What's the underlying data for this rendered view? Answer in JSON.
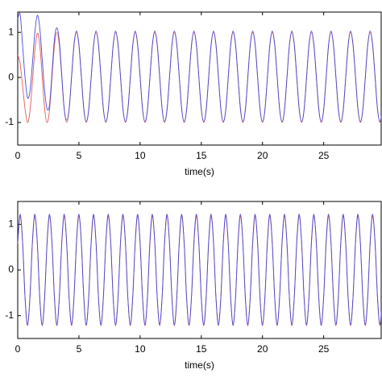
{
  "chart_data": [
    {
      "type": "line",
      "xlabel": "time(s)",
      "xlim": [
        0,
        29.7
      ],
      "ylim": [
        -1.5,
        1.45
      ],
      "xticks": [
        0,
        5,
        10,
        15,
        20,
        25
      ],
      "yticks": [
        -1,
        0,
        1
      ],
      "x": [
        0,
        0.2,
        0.4,
        0.6,
        0.8,
        1,
        1.2,
        1.4,
        1.6,
        1.8,
        2,
        2.2,
        2.4,
        2.6,
        2.8,
        3,
        3.2,
        3.4,
        3.6,
        3.8,
        4,
        4.2,
        4.4,
        4.6,
        4.8,
        5,
        5.2,
        5.4,
        5.6,
        5.8,
        6,
        6.2,
        6.4,
        6.6,
        6.8,
        7,
        7.2,
        7.4,
        7.6,
        7.8,
        8,
        8.2,
        8.4,
        8.6,
        8.8,
        9,
        9.2,
        9.4,
        9.6,
        9.8,
        10,
        10.2,
        10.4,
        10.6,
        10.8,
        11,
        11.2,
        11.4,
        11.6,
        11.8,
        12,
        12.2,
        12.4,
        12.6,
        12.8,
        13,
        13.2,
        13.4,
        13.6,
        13.8,
        14,
        14.2,
        14.4,
        14.6,
        14.8,
        15,
        15.2,
        15.4,
        15.6,
        15.8,
        16,
        16.2,
        16.4,
        16.6,
        16.8,
        17,
        17.2,
        17.4,
        17.6,
        17.8,
        18,
        18.2,
        18.4,
        18.6,
        18.8,
        19,
        19.2,
        19.4,
        19.6,
        19.8,
        20,
        20.2,
        20.4,
        20.6,
        20.8,
        21,
        21.2,
        21.4,
        21.6,
        21.8,
        22,
        22.2,
        22.4,
        22.6,
        22.8,
        23,
        23.2,
        23.4,
        23.6,
        23.8,
        24,
        24.2,
        24.4,
        24.6,
        24.8,
        25,
        25.2,
        25.4,
        25.6,
        25.8,
        26,
        26.2,
        26.4,
        26.6,
        26.8,
        27,
        27.2,
        27.4,
        27.6,
        27.8,
        28,
        28.2,
        28.4,
        28.6,
        28.8,
        29,
        29.2,
        29.4,
        29.6,
        29.8
      ],
      "series": [
        {
          "color": "#e05a5a",
          "values": [
            0.5,
            0.3,
            -0.2,
            -0.7,
            -1,
            -0.75,
            -0.1,
            0.6,
            0.98,
            0.72,
            0.02,
            -0.7,
            -1,
            -0.72,
            0,
            0.71,
            1,
            0.71,
            0,
            -0.71,
            -1,
            -0.71,
            0,
            0.71,
            1,
            0.71,
            0,
            -0.71,
            -1,
            -0.71,
            0,
            0.71,
            1,
            0.71,
            0,
            -0.71,
            -1,
            -0.71,
            0,
            0.71,
            1,
            0.71,
            0,
            -0.71,
            -1,
            -0.71,
            0,
            0.71,
            1,
            0.71,
            0,
            -0.71,
            -1,
            -0.71,
            0,
            0.71,
            1,
            0.71,
            0,
            -0.71,
            -1,
            -0.71,
            0,
            0.71,
            1,
            0.71,
            0,
            -0.71,
            -1,
            -0.71,
            0,
            0.71,
            1,
            0.71,
            0,
            -0.71,
            -1,
            -0.71,
            0,
            0.71,
            1,
            0.71,
            0,
            -0.71,
            -1,
            -0.71,
            0,
            0.71,
            1,
            0.71,
            0,
            -0.71,
            -1,
            -0.71,
            0,
            0.71,
            1,
            0.71,
            0,
            -0.71,
            -1,
            -0.71,
            0,
            0.71,
            1,
            0.71,
            0,
            -0.71,
            -1,
            -0.71,
            0,
            0.71,
            1,
            0.71,
            0,
            -0.71,
            -1,
            -0.71,
            0,
            0.71,
            1,
            0.71,
            0,
            -0.71,
            -1,
            -0.71,
            0,
            0.71,
            1,
            0.71,
            0,
            -0.71,
            -1,
            -0.71,
            0,
            0.71,
            1,
            0.71,
            0,
            -0.71,
            -1,
            -0.71,
            0,
            0.71,
            1,
            0.71,
            0,
            -0.71,
            -1,
            -0.71
          ]
        },
        {
          "color": "#4a4ad0",
          "values": [
            1.3,
            1.4,
            0.7,
            0,
            -0.45,
            -0.3,
            0.3,
            1,
            1.38,
            1.1,
            0.4,
            -0.3,
            -0.7,
            -0.6,
            0.1,
            0.85,
            1.1,
            0.8,
            0.05,
            -0.7,
            -0.95,
            -0.7,
            0.02,
            0.74,
            1.03,
            0.73,
            0.02,
            -0.7,
            -0.98,
            -0.72,
            -0.01,
            0.72,
            1.03,
            0.73,
            0.02,
            -0.7,
            -0.98,
            -0.72,
            -0.01,
            0.72,
            1.03,
            0.73,
            0.02,
            -0.7,
            -0.98,
            -0.72,
            -0.01,
            0.72,
            1.03,
            0.73,
            0.02,
            -0.7,
            -0.98,
            -0.72,
            -0.01,
            0.72,
            1.03,
            0.73,
            0.02,
            -0.7,
            -0.98,
            -0.72,
            -0.01,
            0.72,
            1.03,
            0.73,
            0.02,
            -0.7,
            -0.98,
            -0.72,
            -0.01,
            0.72,
            1.03,
            0.73,
            0.02,
            -0.7,
            -0.98,
            -0.72,
            -0.01,
            0.72,
            1.03,
            0.73,
            0.02,
            -0.7,
            -0.98,
            -0.72,
            -0.01,
            0.72,
            1.03,
            0.73,
            0.02,
            -0.7,
            -0.98,
            -0.72,
            -0.01,
            0.72,
            1.03,
            0.73,
            0.02,
            -0.7,
            -0.98,
            -0.72,
            -0.01,
            0.72,
            1.03,
            0.73,
            0.02,
            -0.7,
            -0.98,
            -0.72,
            -0.01,
            0.72,
            1.03,
            0.73,
            0.02,
            -0.7,
            -0.98,
            -0.72,
            -0.01,
            0.72,
            1.03,
            0.73,
            0.02,
            -0.7,
            -0.98,
            -0.72,
            -0.01,
            0.72,
            1.03,
            0.73,
            0.02,
            -0.7,
            -0.98,
            -0.72,
            -0.01,
            0.72,
            1.03,
            0.73,
            0.02,
            -0.7,
            -0.98,
            -0.72,
            -0.01,
            0.72,
            1.03,
            0.73,
            0.02,
            -0.7,
            -0.98,
            -0.72
          ]
        }
      ]
    },
    {
      "type": "line",
      "xlabel": "time(s)",
      "xlim": [
        0,
        29.7
      ],
      "ylim": [
        -1.5,
        1.5
      ],
      "xticks": [
        0,
        5,
        10,
        15,
        20,
        25
      ],
      "yticks": [
        -1,
        0,
        1
      ],
      "x": [
        0,
        0.2,
        0.4,
        0.6,
        0.8,
        1,
        1.2,
        1.4,
        1.6,
        1.8,
        2,
        2.2,
        2.4,
        2.6,
        2.8,
        3,
        3.2,
        3.4,
        3.6,
        3.8,
        4,
        4.2,
        4.4,
        4.6,
        4.8,
        5,
        5.2,
        5.4,
        5.6,
        5.8,
        6,
        6.2,
        6.4,
        6.6,
        6.8,
        7,
        7.2,
        7.4,
        7.6,
        7.8,
        8,
        8.2,
        8.4,
        8.6,
        8.8,
        9,
        9.2,
        9.4,
        9.6,
        9.8,
        10,
        10.2,
        10.4,
        10.6,
        10.8,
        11,
        11.2,
        11.4,
        11.6,
        11.8,
        12,
        12.2,
        12.4,
        12.6,
        12.8,
        13,
        13.2,
        13.4,
        13.6,
        13.8,
        14,
        14.2,
        14.4,
        14.6,
        14.8,
        15,
        15.2,
        15.4,
        15.6,
        15.8,
        16,
        16.2,
        16.4,
        16.6,
        16.8,
        17,
        17.2,
        17.4,
        17.6,
        17.8,
        18,
        18.2,
        18.4,
        18.6,
        18.8,
        19,
        19.2,
        19.4,
        19.6,
        19.8,
        20,
        20.2,
        20.4,
        20.6,
        20.8,
        21,
        21.2,
        21.4,
        21.6,
        21.8,
        22,
        22.2,
        22.4,
        22.6,
        22.8,
        23,
        23.2,
        23.4,
        23.6,
        23.8,
        24,
        24.2,
        24.4,
        24.6,
        24.8,
        25,
        25.2,
        25.4,
        25.6,
        25.8,
        26,
        26.2,
        26.4,
        26.6,
        26.8,
        27,
        27.2,
        27.4,
        27.6,
        27.8,
        28,
        28.2,
        28.4,
        28.6,
        28.8,
        29,
        29.2,
        29.4,
        29.6,
        29.8
      ],
      "series": [
        {
          "color": "#e05a5a",
          "values": [
            0.58,
            1.18,
            0.6,
            -0.6,
            -1.22,
            -0.6,
            0.58,
            1.18,
            0.6,
            -0.6,
            -1.22,
            -0.6,
            0.58,
            1.18,
            0.6,
            -0.6,
            -1.22,
            -0.6,
            0.58,
            1.18,
            0.6,
            -0.6,
            -1.22,
            -0.6,
            0.58,
            1.18,
            0.6,
            -0.6,
            -1.22,
            -0.6,
            0.58,
            1.18,
            0.6,
            -0.6,
            -1.22,
            -0.6,
            0.58,
            1.18,
            0.6,
            -0.6,
            -1.22,
            -0.6,
            0.58,
            1.18,
            0.6,
            -0.6,
            -1.22,
            -0.6,
            0.58,
            1.18,
            0.6,
            -0.6,
            -1.22,
            -0.6,
            0.58,
            1.18,
            0.6,
            -0.6,
            -1.22,
            -0.6,
            0.58,
            1.18,
            0.6,
            -0.6,
            -1.22,
            -0.6,
            0.58,
            1.18,
            0.6,
            -0.6,
            -1.22,
            -0.6,
            0.58,
            1.18,
            0.6,
            -0.6,
            -1.22,
            -0.6,
            0.58,
            1.18,
            0.6,
            -0.6,
            -1.22,
            -0.6,
            0.58,
            1.18,
            0.6,
            -0.6,
            -1.22,
            -0.6,
            0.58,
            1.18,
            0.6,
            -0.6,
            -1.22,
            -0.6,
            0.58,
            1.18,
            0.6,
            -0.6,
            -1.22,
            -0.6,
            0.58,
            1.18,
            0.6,
            -0.6,
            -1.22,
            -0.6,
            0.58,
            1.18,
            0.6,
            -0.6,
            -1.22,
            -0.6,
            0.58,
            1.18,
            0.6,
            -0.6,
            -1.22,
            -0.6,
            0.58,
            1.18,
            0.6,
            -0.6,
            -1.22,
            -0.6,
            0.58,
            1.18,
            0.6,
            -0.6,
            -1.22,
            -0.6,
            0.58,
            1.18,
            0.6,
            -0.6,
            -1.22,
            -0.6,
            0.58,
            1.18,
            0.6,
            -0.6,
            -1.22,
            -0.6,
            0.58,
            1.18,
            0.6,
            -0.6,
            -1.22,
            -0.6
          ]
        },
        {
          "color": "#4a4ad0",
          "values": [
            0.62,
            1.22,
            0.58,
            -0.62,
            -1.2,
            -0.58,
            0.62,
            1.22,
            0.58,
            -0.62,
            -1.2,
            -0.58,
            0.62,
            1.22,
            0.58,
            -0.62,
            -1.2,
            -0.58,
            0.62,
            1.22,
            0.58,
            -0.62,
            -1.2,
            -0.58,
            0.62,
            1.22,
            0.58,
            -0.62,
            -1.2,
            -0.58,
            0.62,
            1.22,
            0.58,
            -0.62,
            -1.2,
            -0.58,
            0.62,
            1.22,
            0.58,
            -0.62,
            -1.2,
            -0.58,
            0.62,
            1.22,
            0.58,
            -0.62,
            -1.2,
            -0.58,
            0.62,
            1.22,
            0.58,
            -0.62,
            -1.2,
            -0.58,
            0.62,
            1.22,
            0.58,
            -0.62,
            -1.2,
            -0.58,
            0.62,
            1.22,
            0.58,
            -0.62,
            -1.2,
            -0.58,
            0.62,
            1.22,
            0.58,
            -0.62,
            -1.2,
            -0.58,
            0.62,
            1.22,
            0.58,
            -0.62,
            -1.2,
            -0.58,
            0.62,
            1.22,
            0.58,
            -0.62,
            -1.2,
            -0.58,
            0.62,
            1.22,
            0.58,
            -0.62,
            -1.2,
            -0.58,
            0.62,
            1.22,
            0.58,
            -0.62,
            -1.2,
            -0.58,
            0.62,
            1.22,
            0.58,
            -0.62,
            -1.2,
            -0.58,
            0.62,
            1.22,
            0.58,
            -0.62,
            -1.2,
            -0.58,
            0.62,
            1.22,
            0.58,
            -0.62,
            -1.2,
            -0.58,
            0.62,
            1.22,
            0.58,
            -0.62,
            -1.2,
            -0.58,
            0.62,
            1.22,
            0.58,
            -0.62,
            -1.2,
            -0.58,
            0.62,
            1.22,
            0.58,
            -0.62,
            -1.2,
            -0.58,
            0.62,
            1.22,
            0.58,
            -0.62,
            -1.2,
            -0.58,
            0.62,
            1.22,
            0.58,
            -0.62,
            -1.2,
            -0.58,
            0.62,
            1.22,
            0.58,
            -0.62,
            -1.2,
            -0.58
          ]
        }
      ]
    }
  ]
}
